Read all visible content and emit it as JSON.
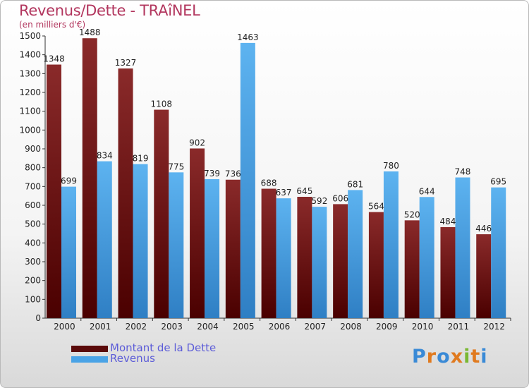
{
  "title": "Revenus/Dette - TRAîNEL",
  "subtitle": "(en milliers d'€)",
  "logo": {
    "text": "Proxiti",
    "letter_colors": [
      "#3a8ad6",
      "#e07a1f",
      "#3a8ad6",
      "#e07a1f",
      "#7ab833",
      "#e07a1f",
      "#3a8ad6"
    ]
  },
  "legend": [
    {
      "label": "Montant de la Dette",
      "color": "#6b0f0f"
    },
    {
      "label": "Revenus",
      "color": "#4aa3e6"
    }
  ],
  "chart_data": {
    "type": "bar",
    "title": "Revenus/Dette - TRAîNEL",
    "subtitle": "(en milliers d'€)",
    "categories": [
      "2000",
      "2001",
      "2002",
      "2003",
      "2004",
      "2005",
      "2006",
      "2007",
      "2008",
      "2009",
      "2010",
      "2011",
      "2012"
    ],
    "series": [
      {
        "name": "Montant de la Dette",
        "color": "#6b0f0f",
        "values": [
          1348,
          1488,
          1327,
          1108,
          902,
          736,
          688,
          645,
          606,
          564,
          520,
          484,
          446
        ]
      },
      {
        "name": "Revenus",
        "color": "#4aa3e6",
        "values": [
          699,
          834,
          819,
          775,
          739,
          1463,
          637,
          592,
          681,
          780,
          644,
          748,
          695
        ]
      }
    ],
    "ylim": [
      0,
      1500
    ],
    "yticks": [
      0,
      100,
      200,
      300,
      400,
      500,
      600,
      700,
      800,
      900,
      1000,
      1100,
      1200,
      1300,
      1400,
      1500
    ],
    "grid": false,
    "legend_position": "bottom-left"
  }
}
